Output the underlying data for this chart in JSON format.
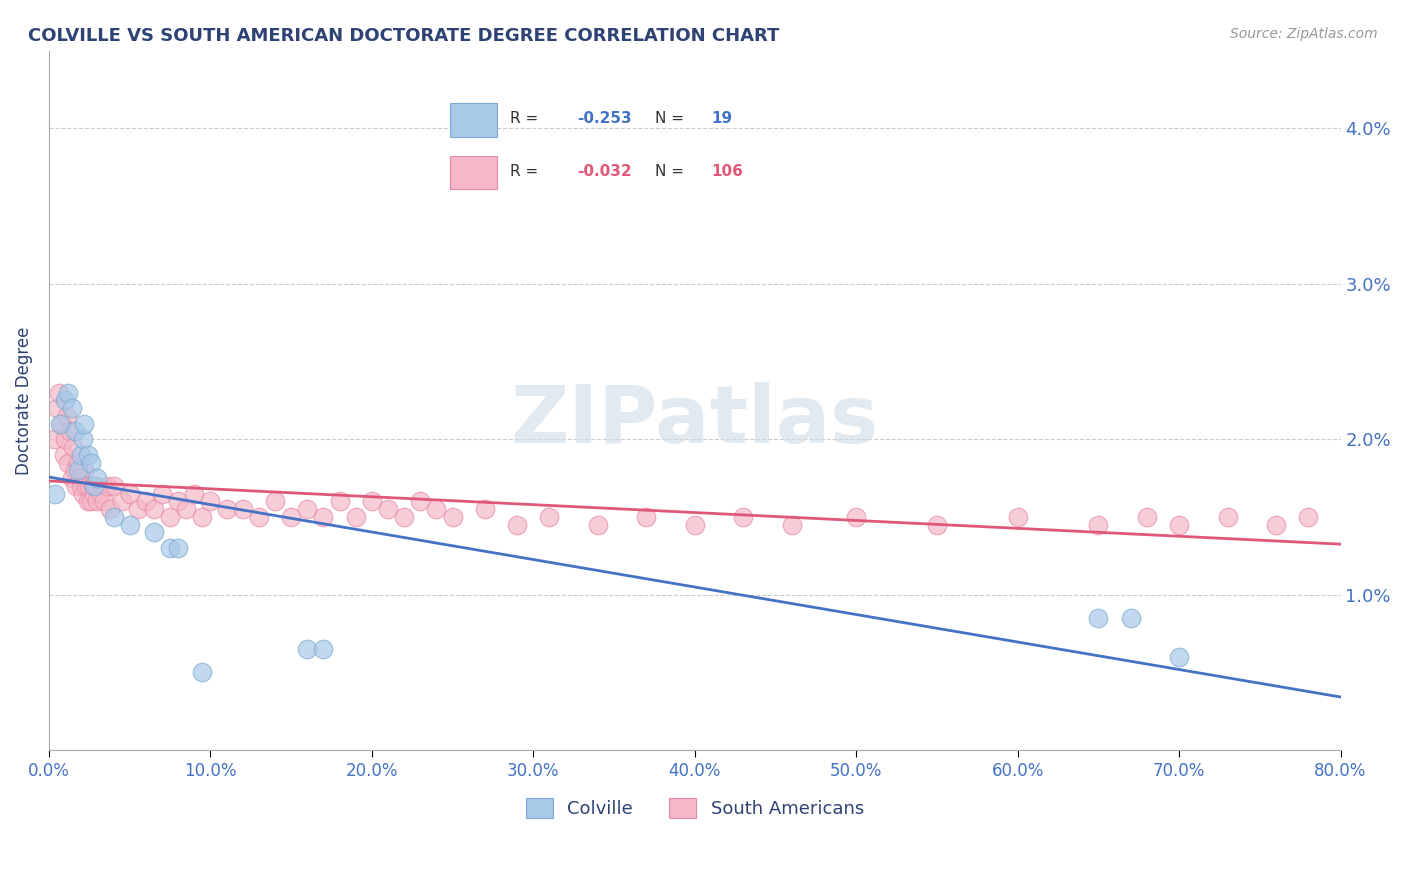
{
  "title": "COLVILLE VS SOUTH AMERICAN DOCTORATE DEGREE CORRELATION CHART",
  "source": "Source: ZipAtlas.com",
  "ylabel": "Doctorate Degree",
  "xlim": [
    0,
    80
  ],
  "ylim": [
    0,
    4.5
  ],
  "yticks": [
    0,
    1.0,
    2.0,
    3.0,
    4.0
  ],
  "xticks": [
    0,
    10,
    20,
    30,
    40,
    50,
    60,
    70,
    80
  ],
  "colville_color": "#A8C8E8",
  "colville_edge_color": "#7AAAD0",
  "south_american_color": "#F4B8C8",
  "south_american_edge_color": "#E888A8",
  "colville_line_color": "#4472C4",
  "south_american_line_color": "#E05878",
  "legend_label_colville": "Colville",
  "legend_label_south": "South Americans",
  "colville_x": [
    0.4,
    0.7,
    1.0,
    1.2,
    1.4,
    1.6,
    1.8,
    2.0,
    2.1,
    2.2,
    2.4,
    2.6,
    2.8,
    3.0,
    4.0,
    5.0,
    6.5,
    7.5,
    8.0,
    9.5,
    16.0,
    17.0,
    65.0,
    67.0,
    70.0
  ],
  "colville_y": [
    1.65,
    2.1,
    2.25,
    2.3,
    2.2,
    2.05,
    1.8,
    1.9,
    2.0,
    2.1,
    1.9,
    1.85,
    1.7,
    1.75,
    1.5,
    1.45,
    1.4,
    1.3,
    1.3,
    0.5,
    0.65,
    0.65,
    0.85,
    0.85,
    0.6
  ],
  "south_american_x": [
    0.3,
    0.5,
    0.6,
    0.8,
    0.9,
    1.0,
    1.1,
    1.2,
    1.3,
    1.4,
    1.5,
    1.6,
    1.7,
    1.8,
    1.9,
    2.0,
    2.1,
    2.2,
    2.3,
    2.4,
    2.5,
    2.6,
    2.7,
    2.8,
    2.9,
    3.0,
    3.2,
    3.4,
    3.6,
    3.8,
    4.0,
    4.5,
    5.0,
    5.5,
    6.0,
    6.5,
    7.0,
    7.5,
    8.0,
    8.5,
    9.0,
    9.5,
    10.0,
    11.0,
    12.0,
    13.0,
    14.0,
    15.0,
    16.0,
    17.0,
    18.0,
    19.0,
    20.0,
    21.0,
    22.0,
    23.0,
    24.0,
    25.0,
    27.0,
    29.0,
    31.0,
    34.0,
    37.0,
    40.0,
    43.0,
    46.0,
    50.0,
    55.0,
    60.0,
    65.0,
    68.0,
    70.0,
    73.0,
    76.0,
    78.0
  ],
  "south_american_y": [
    2.0,
    2.2,
    2.3,
    2.1,
    1.9,
    2.0,
    2.15,
    1.85,
    2.05,
    1.75,
    1.95,
    1.8,
    1.7,
    1.85,
    1.75,
    1.7,
    1.65,
    1.8,
    1.7,
    1.6,
    1.7,
    1.6,
    1.7,
    1.65,
    1.7,
    1.6,
    1.65,
    1.6,
    1.7,
    1.55,
    1.7,
    1.6,
    1.65,
    1.55,
    1.6,
    1.55,
    1.65,
    1.5,
    1.6,
    1.55,
    1.65,
    1.5,
    1.6,
    1.55,
    1.55,
    1.5,
    1.6,
    1.5,
    1.55,
    1.5,
    1.6,
    1.5,
    1.6,
    1.55,
    1.5,
    1.6,
    1.55,
    1.5,
    1.55,
    1.45,
    1.5,
    1.45,
    1.5,
    1.45,
    1.5,
    1.45,
    1.5,
    1.45,
    1.5,
    1.45,
    1.5,
    1.45,
    1.5,
    1.45,
    1.5
  ],
  "background_color": "#ffffff",
  "grid_color": "#cccccc",
  "title_color": "#2E4374",
  "axis_label_color": "#2E4374",
  "tick_label_color": "#4472C4",
  "watermark_text": "ZIPatlas",
  "marker_size": 180
}
